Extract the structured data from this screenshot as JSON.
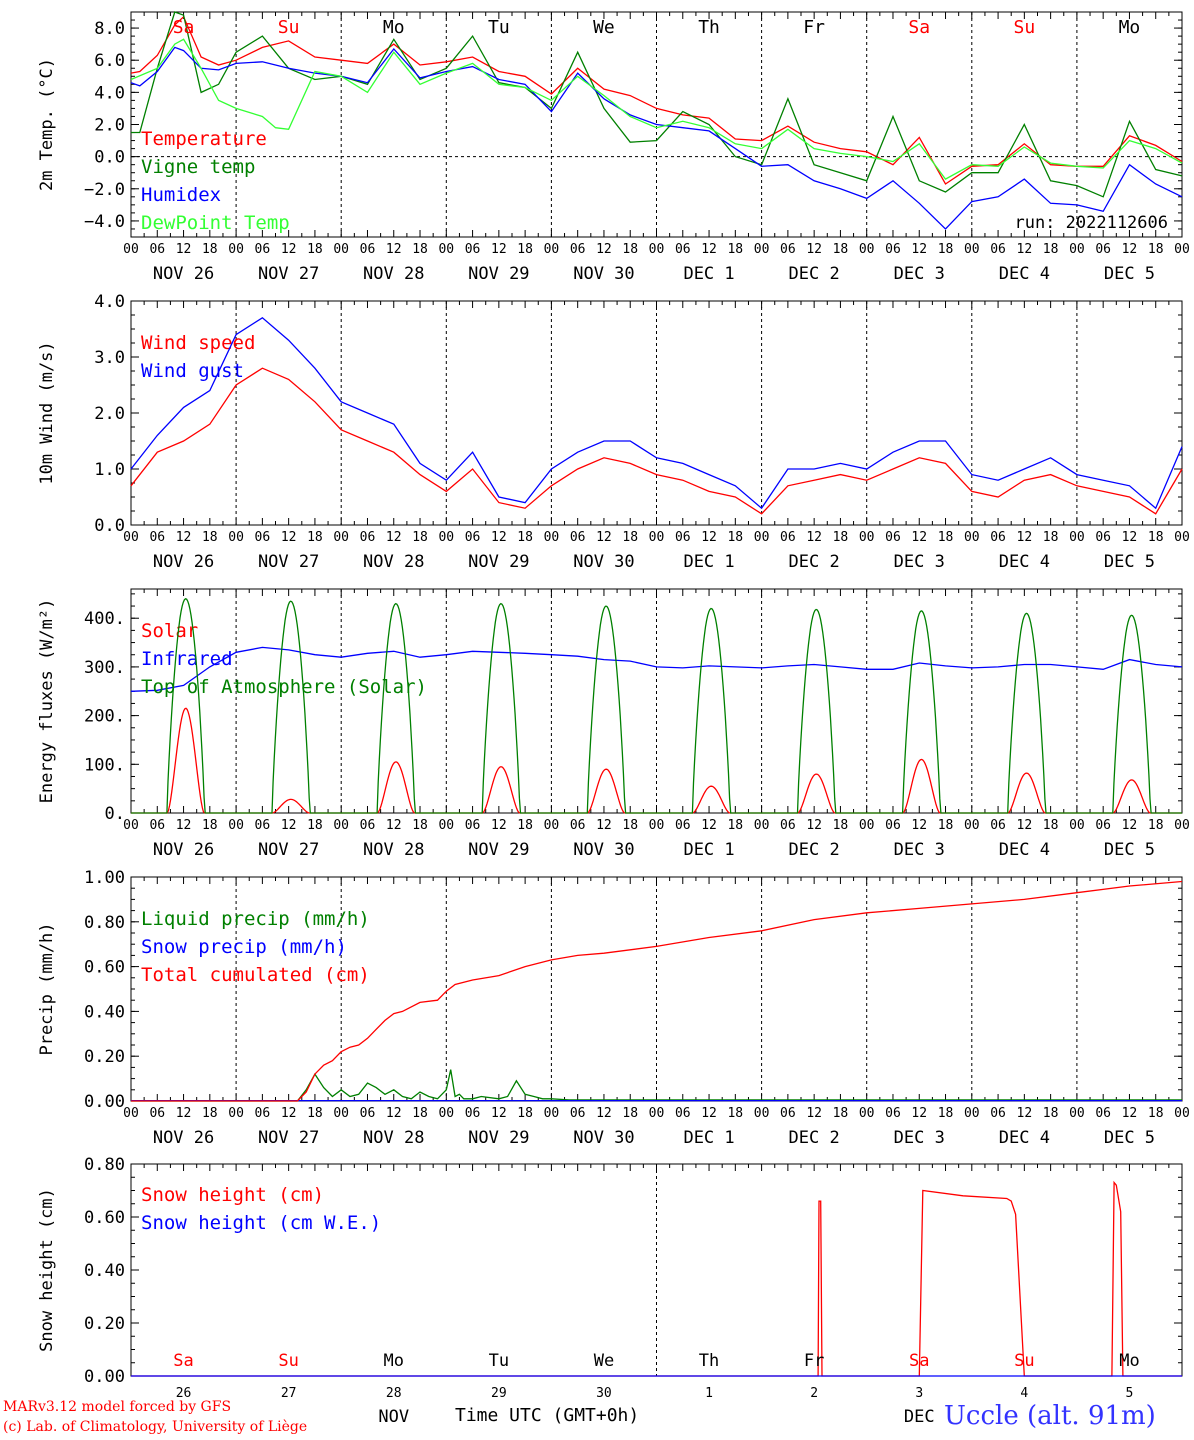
{
  "run_label": "run: 2022112606",
  "hour_ticks": [
    "00",
    "06",
    "12",
    "18"
  ],
  "last_hour": "00",
  "day_labels": [
    "NOV 26",
    "NOV 27",
    "NOV 28",
    "NOV 29",
    "NOV 30",
    "DEC  1",
    "DEC  2",
    "DEC  3",
    "DEC  4",
    "DEC  5"
  ],
  "weekdays": [
    {
      "label": "Sa",
      "color": "#ff0000"
    },
    {
      "label": "Su",
      "color": "#ff0000"
    },
    {
      "label": "Mo",
      "color": "#000000"
    },
    {
      "label": "Tu",
      "color": "#000000"
    },
    {
      "label": "We",
      "color": "#000000"
    },
    {
      "label": "Th",
      "color": "#000000"
    },
    {
      "label": "Fr",
      "color": "#000000"
    },
    {
      "label": "Sa",
      "color": "#ff0000"
    },
    {
      "label": "Su",
      "color": "#ff0000"
    },
    {
      "label": "Mo",
      "color": "#000000"
    }
  ],
  "bottom_day_numbers": [
    "26",
    "27",
    "28",
    "29",
    "30",
    "1",
    "2",
    "3",
    "4",
    "5"
  ],
  "bottom_months": [
    "NOV",
    "DEC"
  ],
  "footer": {
    "model": "MARv3.12 model forced by GFS",
    "copyright": "(c) Lab. of Climatology, University of Liège",
    "time_axis": "Time UTC (GMT+0h)",
    "station": "Uccle (alt. 91m)"
  },
  "chart_data": [
    {
      "type": "line",
      "ylabel": "2m Temp. (°C)",
      "ylim": [
        -5,
        9
      ],
      "yticks": [
        {
          "v": 8,
          "t": "8.0"
        },
        {
          "v": 6,
          "t": "6.0"
        },
        {
          "v": 4,
          "t": "4.0"
        },
        {
          "v": 2,
          "t": "2.0"
        },
        {
          "v": 0,
          "t": "0.0"
        },
        {
          "v": -2,
          "t": "−2.0"
        },
        {
          "v": -4,
          "t": "−4.0"
        }
      ],
      "zero_line": true,
      "series": [
        {
          "name": "Temperature",
          "color": "#ff0000",
          "x": [
            0,
            2,
            6,
            10,
            12,
            16,
            20,
            24,
            30,
            36,
            42,
            48,
            54,
            60,
            66,
            72,
            78,
            84,
            90,
            96,
            102,
            108,
            114,
            120,
            126,
            132,
            138,
            144,
            150,
            156,
            162,
            168,
            174,
            180,
            186,
            192,
            198,
            204,
            210,
            216,
            222,
            228,
            234,
            240
          ],
          "y": [
            5.2,
            5.3,
            6.3,
            8.2,
            8.7,
            6.2,
            5.7,
            6.0,
            6.8,
            7.2,
            6.2,
            6.0,
            5.8,
            7.0,
            5.7,
            5.9,
            6.2,
            5.3,
            5.0,
            3.9,
            5.5,
            4.2,
            3.8,
            3.0,
            2.6,
            2.4,
            1.1,
            1.0,
            1.9,
            0.9,
            0.5,
            0.3,
            -0.5,
            1.2,
            -1.7,
            -0.6,
            -0.5,
            0.8,
            -0.5,
            -0.6,
            -0.6,
            1.3,
            0.7,
            -0.3
          ]
        },
        {
          "name": "Vigne temp",
          "color": "#008000",
          "x": [
            0,
            2,
            6,
            10,
            12,
            16,
            20,
            24,
            30,
            36,
            42,
            48,
            54,
            60,
            66,
            72,
            78,
            84,
            90,
            96,
            102,
            108,
            114,
            120,
            126,
            132,
            138,
            144,
            150,
            156,
            162,
            168,
            174,
            180,
            186,
            192,
            198,
            204,
            210,
            216,
            222,
            228,
            234,
            240
          ],
          "y": [
            1.5,
            1.5,
            5.5,
            9.0,
            8.8,
            4.0,
            4.5,
            6.5,
            7.5,
            5.5,
            4.8,
            5.0,
            4.5,
            7.3,
            4.8,
            5.5,
            7.5,
            4.6,
            4.3,
            3.0,
            6.5,
            3.0,
            0.9,
            1.0,
            2.8,
            2.0,
            0.0,
            -0.5,
            3.6,
            -0.5,
            -1.0,
            -1.5,
            2.5,
            -1.5,
            -2.2,
            -1.0,
            -1.0,
            2.0,
            -1.5,
            -1.8,
            -2.5,
            2.2,
            -0.8,
            -1.2
          ]
        },
        {
          "name": "Humidex",
          "color": "#0000ff",
          "x": [
            0,
            2,
            6,
            10,
            12,
            16,
            20,
            24,
            30,
            36,
            42,
            48,
            54,
            60,
            66,
            72,
            78,
            84,
            90,
            96,
            102,
            108,
            114,
            120,
            126,
            132,
            138,
            144,
            150,
            156,
            162,
            168,
            174,
            180,
            186,
            192,
            198,
            204,
            210,
            216,
            222,
            228,
            234,
            240
          ],
          "y": [
            4.6,
            4.4,
            5.3,
            6.8,
            6.6,
            5.5,
            5.4,
            5.8,
            5.9,
            5.5,
            5.2,
            5.0,
            4.6,
            6.7,
            4.9,
            5.3,
            5.6,
            4.8,
            4.5,
            2.8,
            5.2,
            3.6,
            2.6,
            2.0,
            1.8,
            1.6,
            0.5,
            -0.6,
            -0.5,
            -1.5,
            -2.0,
            -2.6,
            -1.5,
            -2.9,
            -4.5,
            -2.8,
            -2.5,
            -1.4,
            -2.9,
            -3.0,
            -3.4,
            -0.5,
            -1.7,
            -2.5
          ]
        },
        {
          "name": "DewPoint Temp",
          "color": "#33ff33",
          "x": [
            0,
            6,
            10,
            12,
            16,
            20,
            24,
            30,
            33,
            36,
            42,
            48,
            54,
            60,
            66,
            72,
            78,
            84,
            90,
            96,
            102,
            108,
            114,
            120,
            126,
            132,
            138,
            144,
            150,
            156,
            162,
            168,
            174,
            180,
            186,
            192,
            198,
            204,
            210,
            216,
            222,
            228,
            234,
            240
          ],
          "y": [
            4.8,
            5.5,
            7.0,
            7.3,
            5.5,
            3.5,
            3.0,
            2.5,
            1.8,
            1.7,
            5.3,
            5.0,
            4.0,
            6.5,
            4.5,
            5.2,
            5.8,
            4.5,
            4.3,
            3.5,
            5.0,
            3.8,
            2.5,
            1.8,
            2.2,
            1.8,
            0.8,
            0.5,
            1.7,
            0.5,
            0.2,
            0.0,
            -0.3,
            0.8,
            -1.4,
            -0.5,
            -0.6,
            0.6,
            -0.4,
            -0.6,
            -0.7,
            1.0,
            0.5,
            -0.4
          ]
        }
      ]
    },
    {
      "type": "line",
      "ylabel": "10m Wind (m/s)",
      "ylim": [
        0,
        4
      ],
      "yticks": [
        {
          "v": 4,
          "t": "4.0"
        },
        {
          "v": 3,
          "t": "3.0"
        },
        {
          "v": 2,
          "t": "2.0"
        },
        {
          "v": 1,
          "t": "1.0"
        },
        {
          "v": 0,
          "t": "0.0"
        }
      ],
      "series": [
        {
          "name": "Wind speed",
          "color": "#ff0000",
          "x": [
            0,
            6,
            12,
            18,
            24,
            30,
            36,
            42,
            48,
            54,
            60,
            66,
            72,
            78,
            84,
            90,
            96,
            102,
            108,
            114,
            120,
            126,
            132,
            138,
            144,
            150,
            156,
            162,
            168,
            174,
            180,
            186,
            192,
            198,
            204,
            210,
            216,
            222,
            228,
            234,
            240
          ],
          "y": [
            0.7,
            1.3,
            1.5,
            1.8,
            2.5,
            2.8,
            2.6,
            2.2,
            1.7,
            1.5,
            1.3,
            0.9,
            0.6,
            1.0,
            0.4,
            0.3,
            0.7,
            1.0,
            1.2,
            1.1,
            0.9,
            0.8,
            0.6,
            0.5,
            0.2,
            0.7,
            0.8,
            0.9,
            0.8,
            1.0,
            1.2,
            1.1,
            0.6,
            0.5,
            0.8,
            0.9,
            0.7,
            0.6,
            0.5,
            0.2,
            1.0
          ]
        },
        {
          "name": "Wind gust",
          "color": "#0000ff",
          "x": [
            0,
            6,
            12,
            18,
            24,
            30,
            36,
            42,
            48,
            54,
            60,
            66,
            72,
            78,
            84,
            90,
            96,
            102,
            108,
            114,
            120,
            126,
            132,
            138,
            144,
            150,
            156,
            162,
            168,
            174,
            180,
            186,
            192,
            198,
            204,
            210,
            216,
            222,
            228,
            234,
            240
          ],
          "y": [
            1.0,
            1.6,
            2.1,
            2.4,
            3.4,
            3.7,
            3.3,
            2.8,
            2.2,
            2.0,
            1.8,
            1.1,
            0.8,
            1.3,
            0.5,
            0.4,
            1.0,
            1.3,
            1.5,
            1.5,
            1.2,
            1.1,
            0.9,
            0.7,
            0.3,
            1.0,
            1.0,
            1.1,
            1.0,
            1.3,
            1.5,
            1.5,
            0.9,
            0.8,
            1.0,
            1.2,
            0.9,
            0.8,
            0.7,
            0.3,
            1.4
          ]
        }
      ]
    },
    {
      "type": "line",
      "ylabel": "Energy fluxes (W/m²)",
      "ylim": [
        0,
        460
      ],
      "yticks": [
        {
          "v": 400,
          "t": "400."
        },
        {
          "v": 300,
          "t": "300."
        },
        {
          "v": 200,
          "t": "200."
        },
        {
          "v": 100,
          "t": "100."
        },
        {
          "v": 0,
          "t": "0."
        }
      ],
      "series": [
        {
          "name": "Solar",
          "color": "#ff0000",
          "type": "diurnal",
          "peaks": [
            215,
            28,
            105,
            95,
            90,
            55,
            80,
            110,
            82,
            68
          ],
          "half_width": 4.2
        },
        {
          "name": "Infrared",
          "color": "#0000ff",
          "x": [
            0,
            6,
            12,
            18,
            24,
            30,
            36,
            42,
            48,
            54,
            60,
            66,
            72,
            78,
            84,
            90,
            96,
            102,
            108,
            114,
            120,
            126,
            132,
            138,
            144,
            150,
            156,
            162,
            168,
            174,
            180,
            186,
            192,
            198,
            204,
            210,
            216,
            222,
            228,
            234,
            240
          ],
          "y": [
            250,
            252,
            262,
            300,
            330,
            340,
            335,
            325,
            320,
            328,
            332,
            320,
            325,
            332,
            330,
            328,
            325,
            322,
            315,
            312,
            300,
            298,
            302,
            300,
            298,
            302,
            305,
            300,
            295,
            295,
            308,
            302,
            298,
            300,
            305,
            305,
            300,
            295,
            315,
            305,
            300
          ]
        },
        {
          "name": "Top of Atmosphere (Solar)",
          "color": "#008000",
          "type": "diurnal",
          "peaks": [
            440,
            435,
            430,
            430,
            425,
            420,
            418,
            415,
            410,
            406
          ],
          "half_width": 4.3
        }
      ]
    },
    {
      "type": "line",
      "ylabel": "Precip (mm/h)",
      "ylim": [
        0,
        1
      ],
      "yticks": [
        {
          "v": 1,
          "t": "1.00"
        },
        {
          "v": 0.8,
          "t": "0.80"
        },
        {
          "v": 0.6,
          "t": "0.60"
        },
        {
          "v": 0.4,
          "t": "0.40"
        },
        {
          "v": 0.2,
          "t": "0.20"
        },
        {
          "v": 0,
          "t": "0.00"
        }
      ],
      "series": [
        {
          "name": "Liquid precip (mm/h)",
          "color": "#008000",
          "x": [
            0,
            38,
            40,
            42,
            44,
            46,
            48,
            50,
            52,
            54,
            56,
            58,
            60,
            62,
            64,
            66,
            68,
            70,
            72,
            73,
            74,
            75,
            76,
            78,
            80,
            84,
            86,
            88,
            90,
            92,
            94,
            96,
            100,
            120,
            150,
            240
          ],
          "y": [
            0,
            0,
            0.05,
            0.12,
            0.06,
            0.02,
            0.05,
            0.02,
            0.03,
            0.08,
            0.06,
            0.03,
            0.05,
            0.02,
            0.01,
            0.04,
            0.02,
            0.01,
            0.05,
            0.14,
            0.02,
            0.03,
            0.01,
            0.01,
            0.02,
            0.01,
            0.02,
            0.09,
            0.03,
            0.02,
            0.01,
            0.01,
            0.005,
            0.005,
            0.005,
            0.005
          ]
        },
        {
          "name": "Snow precip (mm/h)",
          "color": "#0000ff",
          "x": [
            0,
            240
          ],
          "y": [
            0.002,
            0.002
          ]
        },
        {
          "name": "Total cumulated (cm)",
          "color": "#ff0000",
          "x": [
            0,
            38,
            40,
            42,
            44,
            46,
            48,
            50,
            52,
            54,
            56,
            58,
            60,
            62,
            66,
            70,
            72,
            74,
            78,
            84,
            90,
            96,
            102,
            108,
            120,
            132,
            144,
            156,
            168,
            180,
            192,
            204,
            216,
            228,
            240
          ],
          "y": [
            0,
            0,
            0.04,
            0.12,
            0.16,
            0.18,
            0.22,
            0.24,
            0.25,
            0.28,
            0.32,
            0.36,
            0.39,
            0.4,
            0.44,
            0.45,
            0.49,
            0.52,
            0.54,
            0.56,
            0.6,
            0.63,
            0.65,
            0.66,
            0.69,
            0.73,
            0.76,
            0.81,
            0.84,
            0.86,
            0.88,
            0.9,
            0.93,
            0.96,
            0.98
          ]
        }
      ]
    },
    {
      "type": "line",
      "ylabel": "Snow height (cm)",
      "ylim": [
        0,
        0.8
      ],
      "yticks": [
        {
          "v": 0.8,
          "t": "0.80"
        },
        {
          "v": 0.6,
          "t": "0.60"
        },
        {
          "v": 0.4,
          "t": "0.40"
        },
        {
          "v": 0.2,
          "t": "0.20"
        },
        {
          "v": 0,
          "t": "0.00"
        }
      ],
      "series": [
        {
          "name": "Snow height (cm)",
          "color": "#ff0000",
          "x": [
            0,
            156.9,
            157.1,
            157.5,
            157.8,
            180,
            180.8,
            190,
            200,
            201,
            202,
            204,
            224,
            224.5,
            225,
            226,
            226.5,
            240
          ],
          "y": [
            0,
            0,
            0.66,
            0.66,
            0,
            0,
            0.7,
            0.68,
            0.67,
            0.66,
            0.61,
            0,
            0,
            0.73,
            0.72,
            0.62,
            0,
            0
          ]
        },
        {
          "name": "Snow height (cm W.E.)",
          "color": "#0000ff",
          "x": [
            0,
            240
          ],
          "y": [
            0,
            0
          ]
        }
      ]
    }
  ]
}
